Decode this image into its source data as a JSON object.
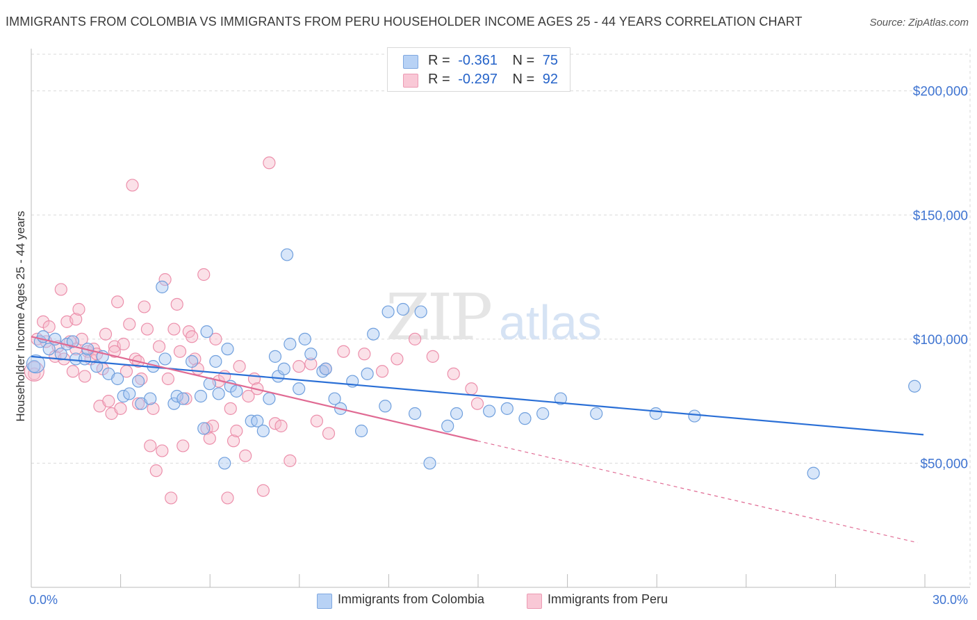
{
  "title": "IMMIGRANTS FROM COLOMBIA VS IMMIGRANTS FROM PERU HOUSEHOLDER INCOME AGES 25 - 44 YEARS CORRELATION CHART",
  "source": "Source: ZipAtlas.com",
  "watermark": "ZIPatlas",
  "legend": {
    "colombia": {
      "r_label": "R =",
      "r_value": "-0.361",
      "n_label": "N =",
      "n_value": "75"
    },
    "peru": {
      "r_label": "R =",
      "r_value": "-0.297",
      "n_label": "N =",
      "n_value": "92"
    }
  },
  "colors": {
    "colombia_fill": "#a9c8f2",
    "colombia_stroke": "#6f9fdd",
    "colombia_line": "#2a6fd6",
    "peru_fill": "#f7bccd",
    "peru_stroke": "#ec8fab",
    "peru_line": "#e06a93",
    "grid": "#d9d9d9",
    "tick_label": "#3f74d1"
  },
  "chart_data": {
    "type": "scatter",
    "title": "IMMIGRANTS FROM COLOMBIA VS IMMIGRANTS FROM PERU HOUSEHOLDER INCOME AGES 25 - 44 YEARS CORRELATION CHART",
    "xlabel": "",
    "ylabel": "Householder Income Ages 25 - 44 years",
    "xlim": [
      0,
      30
    ],
    "ylim": [
      0,
      210000
    ],
    "x_tick_labels": [
      "0.0%",
      "30.0%"
    ],
    "y_ticks": [
      50000,
      100000,
      150000,
      200000
    ],
    "y_tick_labels": [
      "$50,000",
      "$100,000",
      "$150,000",
      "$200,000"
    ],
    "grid": true,
    "legend_position": "top-center",
    "series": [
      {
        "name": "Immigrants from Colombia",
        "trend": {
          "x": [
            0,
            30
          ],
          "y": [
            93000,
            61500
          ]
        },
        "points": [
          [
            0.1,
            89000
          ],
          [
            0.3,
            99000
          ],
          [
            0.4,
            101000
          ],
          [
            0.6,
            96000
          ],
          [
            0.8,
            100000
          ],
          [
            1.0,
            94000
          ],
          [
            1.2,
            98000
          ],
          [
            1.4,
            99000
          ],
          [
            1.5,
            92000
          ],
          [
            1.8,
            92000
          ],
          [
            1.9,
            96000
          ],
          [
            2.2,
            89000
          ],
          [
            2.4,
            93000
          ],
          [
            2.6,
            86000
          ],
          [
            2.9,
            84000
          ],
          [
            3.1,
            77000
          ],
          [
            3.3,
            78000
          ],
          [
            3.6,
            83000
          ],
          [
            3.7,
            74000
          ],
          [
            4.0,
            76000
          ],
          [
            4.1,
            89000
          ],
          [
            4.4,
            121000
          ],
          [
            4.5,
            92000
          ],
          [
            4.8,
            74000
          ],
          [
            4.9,
            77000
          ],
          [
            5.1,
            76000
          ],
          [
            5.4,
            91000
          ],
          [
            5.7,
            77000
          ],
          [
            5.8,
            64000
          ],
          [
            5.9,
            103000
          ],
          [
            6.0,
            82000
          ],
          [
            6.2,
            91000
          ],
          [
            6.3,
            78000
          ],
          [
            6.5,
            50000
          ],
          [
            6.6,
            96000
          ],
          [
            6.7,
            81000
          ],
          [
            6.9,
            79000
          ],
          [
            7.4,
            67000
          ],
          [
            7.6,
            67000
          ],
          [
            7.8,
            63000
          ],
          [
            8.0,
            76000
          ],
          [
            8.2,
            93000
          ],
          [
            8.3,
            85000
          ],
          [
            8.5,
            88000
          ],
          [
            8.6,
            134000
          ],
          [
            8.7,
            98000
          ],
          [
            9.0,
            80000
          ],
          [
            9.2,
            100000
          ],
          [
            9.4,
            94000
          ],
          [
            9.8,
            87000
          ],
          [
            9.9,
            88000
          ],
          [
            10.2,
            76000
          ],
          [
            10.4,
            72000
          ],
          [
            10.8,
            83000
          ],
          [
            11.1,
            63000
          ],
          [
            11.3,
            86000
          ],
          [
            11.5,
            102000
          ],
          [
            11.9,
            73000
          ],
          [
            12.0,
            111000
          ],
          [
            12.5,
            112000
          ],
          [
            12.9,
            70000
          ],
          [
            13.1,
            111000
          ],
          [
            13.4,
            50000
          ],
          [
            14.0,
            65000
          ],
          [
            14.3,
            70000
          ],
          [
            15.4,
            71000
          ],
          [
            16.0,
            72000
          ],
          [
            16.6,
            68000
          ],
          [
            17.2,
            70000
          ],
          [
            17.8,
            76000
          ],
          [
            19.0,
            70000
          ],
          [
            21.0,
            70000
          ],
          [
            22.3,
            69000
          ],
          [
            26.3,
            46000
          ],
          [
            29.7,
            81000
          ]
        ]
      },
      {
        "name": "Immigrants from Peru",
        "trend": {
          "x": [
            0,
            15
          ],
          "y": [
            101000,
            59000
          ]
        },
        "trend_dashed": {
          "x": [
            15,
            29.8
          ],
          "y": [
            59000,
            18000
          ]
        },
        "points": [
          [
            0.1,
            86000
          ],
          [
            0.2,
            100000
          ],
          [
            0.4,
            107000
          ],
          [
            0.5,
            99000
          ],
          [
            0.6,
            105000
          ],
          [
            0.8,
            93000
          ],
          [
            0.9,
            97000
          ],
          [
            1.0,
            120000
          ],
          [
            1.1,
            92000
          ],
          [
            1.2,
            107000
          ],
          [
            1.3,
            99000
          ],
          [
            1.4,
            87000
          ],
          [
            1.5,
            108000
          ],
          [
            1.6,
            112000
          ],
          [
            1.7,
            100000
          ],
          [
            1.8,
            85000
          ],
          [
            1.9,
            95000
          ],
          [
            2.0,
            92000
          ],
          [
            2.1,
            96000
          ],
          [
            2.2,
            94000
          ],
          [
            2.3,
            73000
          ],
          [
            2.4,
            88000
          ],
          [
            2.5,
            102000
          ],
          [
            2.6,
            75000
          ],
          [
            2.7,
            70000
          ],
          [
            2.8,
            97000
          ],
          [
            2.9,
            115000
          ],
          [
            3.0,
            72000
          ],
          [
            3.1,
            98000
          ],
          [
            3.2,
            87000
          ],
          [
            3.3,
            106000
          ],
          [
            3.4,
            162000
          ],
          [
            3.5,
            92000
          ],
          [
            3.6,
            91000
          ],
          [
            3.7,
            84000
          ],
          [
            3.8,
            113000
          ],
          [
            3.9,
            104000
          ],
          [
            4.0,
            57000
          ],
          [
            4.1,
            72000
          ],
          [
            4.2,
            47000
          ],
          [
            4.3,
            97000
          ],
          [
            4.4,
            55000
          ],
          [
            4.5,
            124000
          ],
          [
            4.6,
            84000
          ],
          [
            4.7,
            36000
          ],
          [
            4.8,
            104000
          ],
          [
            4.9,
            114000
          ],
          [
            5.0,
            95000
          ],
          [
            5.1,
            57000
          ],
          [
            5.3,
            103000
          ],
          [
            5.4,
            101000
          ],
          [
            5.5,
            92000
          ],
          [
            5.6,
            88000
          ],
          [
            5.8,
            126000
          ],
          [
            5.9,
            64000
          ],
          [
            6.0,
            60000
          ],
          [
            6.1,
            65000
          ],
          [
            6.2,
            100000
          ],
          [
            6.3,
            83000
          ],
          [
            6.5,
            85000
          ],
          [
            6.6,
            36000
          ],
          [
            6.8,
            59000
          ],
          [
            6.9,
            63000
          ],
          [
            7.0,
            89000
          ],
          [
            7.2,
            53000
          ],
          [
            7.3,
            77000
          ],
          [
            7.5,
            84000
          ],
          [
            7.6,
            80000
          ],
          [
            7.8,
            39000
          ],
          [
            8.0,
            171000
          ],
          [
            8.2,
            66000
          ],
          [
            8.4,
            65000
          ],
          [
            8.7,
            51000
          ],
          [
            9.0,
            89000
          ],
          [
            9.4,
            90000
          ],
          [
            9.6,
            67000
          ],
          [
            9.9,
            88000
          ],
          [
            10.0,
            62000
          ],
          [
            10.5,
            95000
          ],
          [
            11.2,
            94000
          ],
          [
            11.8,
            87000
          ],
          [
            12.3,
            92000
          ],
          [
            12.9,
            100000
          ],
          [
            13.5,
            93000
          ],
          [
            14.2,
            86000
          ],
          [
            14.8,
            80000
          ],
          [
            15.0,
            74000
          ],
          [
            1.5,
            96000
          ],
          [
            2.8,
            95000
          ],
          [
            3.6,
            74000
          ],
          [
            5.2,
            76000
          ],
          [
            6.7,
            72000
          ]
        ]
      }
    ]
  },
  "bottom_legend": {
    "colombia": "Immigrants from Colombia",
    "peru": "Immigrants from Peru"
  }
}
